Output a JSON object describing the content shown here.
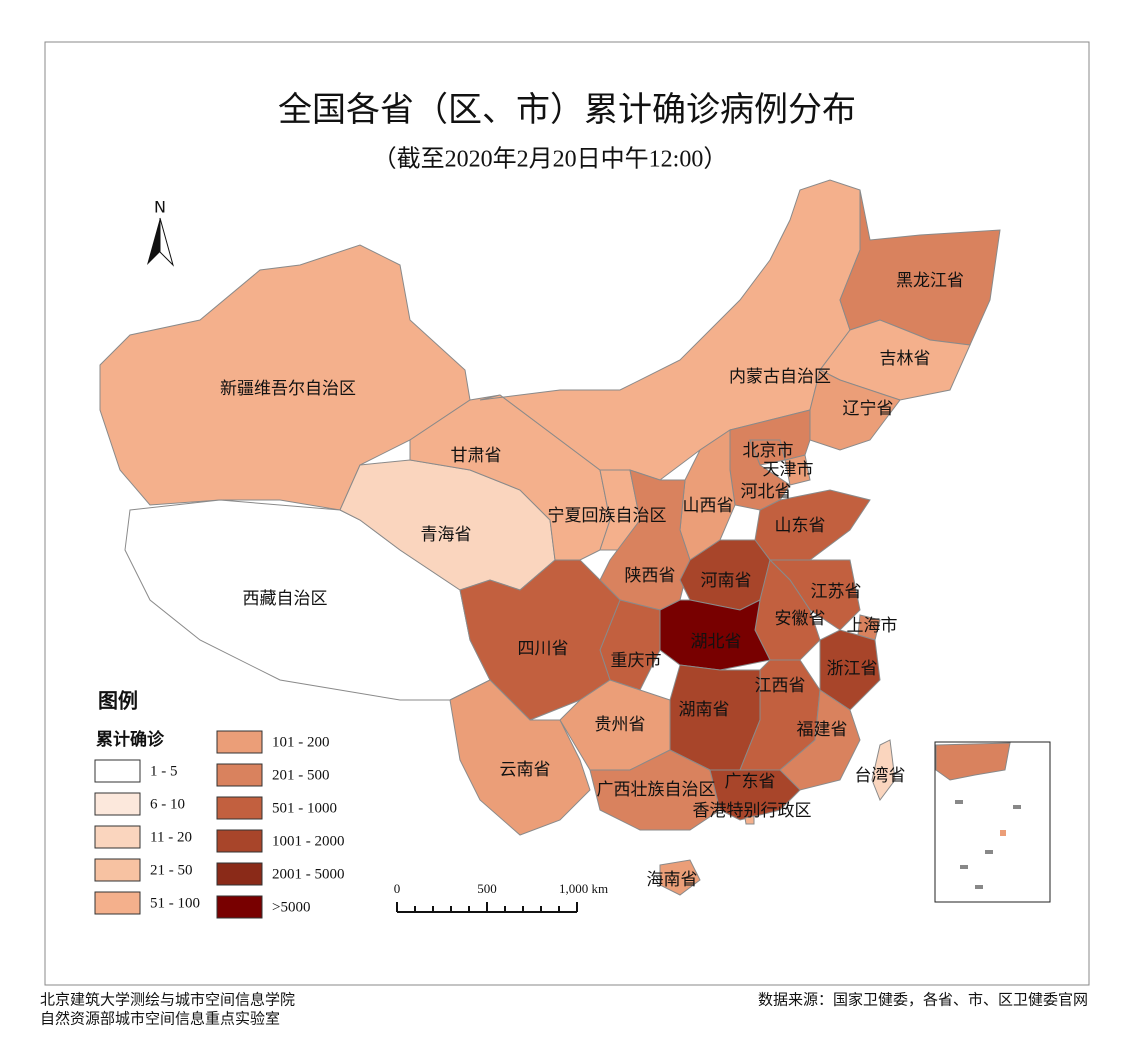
{
  "title": "全国各省（区、市）累计确诊病例分布",
  "subtitle": "（截至2020年2月20日中午12:00）",
  "north": "N",
  "legend": {
    "title": "图例",
    "subtitle": "累计确诊",
    "classes": [
      {
        "label": "1 - 5",
        "color": "#ffffff"
      },
      {
        "label": "6 - 10",
        "color": "#fce8dc"
      },
      {
        "label": "11 - 20",
        "color": "#fad5be"
      },
      {
        "label": "21 - 50",
        "color": "#f7c2a2"
      },
      {
        "label": "51 - 100",
        "color": "#f4b08c"
      },
      {
        "label": "101 - 200",
        "color": "#eb9e78"
      },
      {
        "label": "201 - 500",
        "color": "#d9825e"
      },
      {
        "label": "501 - 1000",
        "color": "#c2603f"
      },
      {
        "label": "1001 - 2000",
        "color": "#a8452a"
      },
      {
        "label": "2001 - 5000",
        "color": "#8a2a18"
      },
      {
        "label": ">5000",
        "color": "#780000"
      }
    ]
  },
  "scale_bar": {
    "labels": [
      "0",
      "500",
      "1,000 km"
    ]
  },
  "regions": [
    {
      "label": "新疆维吾尔自治区",
      "color": "#f4b08c"
    },
    {
      "label": "西藏自治区",
      "color": "#ffffff"
    },
    {
      "label": "青海省",
      "color": "#fad5be"
    },
    {
      "label": "甘肃省",
      "color": "#f4b08c"
    },
    {
      "label": "内蒙古自治区",
      "color": "#f4b08c"
    },
    {
      "label": "黑龙江省",
      "color": "#d9825e"
    },
    {
      "label": "吉林省",
      "color": "#f4b08c"
    },
    {
      "label": "辽宁省",
      "color": "#eb9e78"
    },
    {
      "label": "北京市",
      "color": "#d9825e"
    },
    {
      "label": "天津市",
      "color": "#eb9e78"
    },
    {
      "label": "河北省",
      "color": "#d9825e"
    },
    {
      "label": "山西省",
      "color": "#eb9e78"
    },
    {
      "label": "宁夏回族自治区",
      "color": "#f4b08c"
    },
    {
      "label": "陕西省",
      "color": "#d9825e"
    },
    {
      "label": "山东省",
      "color": "#c2603f"
    },
    {
      "label": "河南省",
      "color": "#a8452a"
    },
    {
      "label": "江苏省",
      "color": "#c2603f"
    },
    {
      "label": "安徽省",
      "color": "#c2603f"
    },
    {
      "label": "上海市",
      "color": "#d9825e"
    },
    {
      "label": "浙江省",
      "color": "#a8452a"
    },
    {
      "label": "湖北省",
      "color": "#780000"
    },
    {
      "label": "重庆市",
      "color": "#c2603f"
    },
    {
      "label": "四川省",
      "color": "#c2603f"
    },
    {
      "label": "云南省",
      "color": "#eb9e78"
    },
    {
      "label": "贵州省",
      "color": "#eb9e78"
    },
    {
      "label": "湖南省",
      "color": "#a8452a"
    },
    {
      "label": "江西省",
      "color": "#c2603f"
    },
    {
      "label": "福建省",
      "color": "#d9825e"
    },
    {
      "label": "广西壮族自治区",
      "color": "#d9825e"
    },
    {
      "label": "广东省",
      "color": "#a8452a"
    },
    {
      "label": "香港特别行政区",
      "color": "#f4b08c"
    },
    {
      "label": "海南省",
      "color": "#eb9e78"
    },
    {
      "label": "台湾省",
      "color": "#fad5be"
    }
  ],
  "footer": {
    "left": [
      "北京建筑大学测绘与城市空间信息学院",
      "自然资源部城市空间信息重点实验室"
    ],
    "right": "数据来源：国家卫健委，各省、市、区卫健委官网"
  }
}
